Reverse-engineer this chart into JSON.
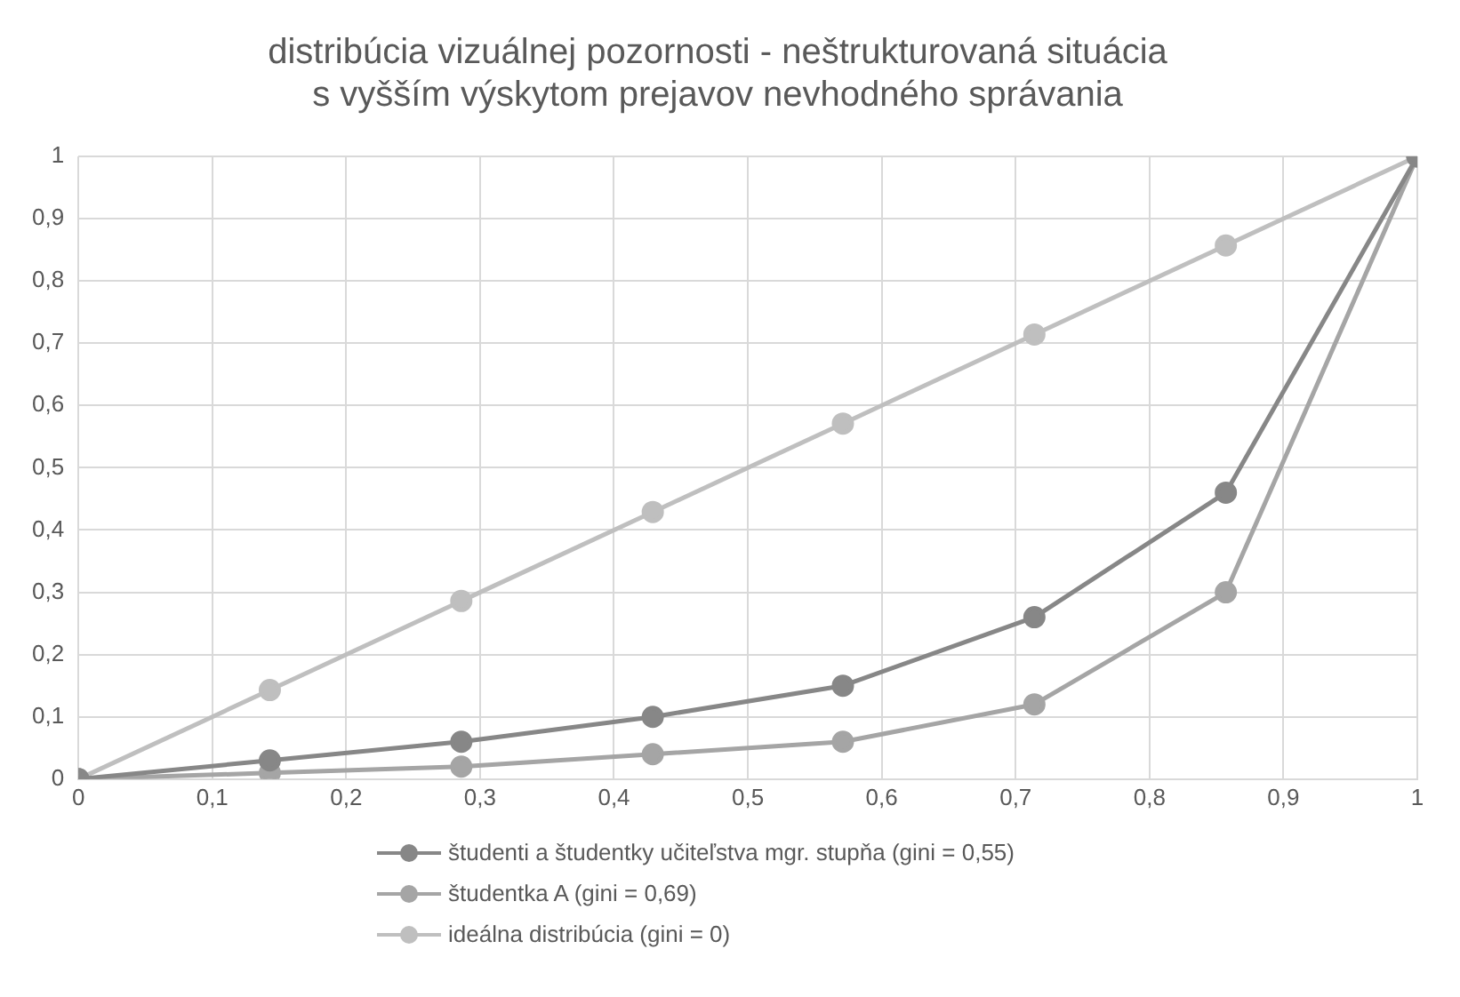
{
  "chart_data": {
    "type": "line",
    "title": "distribúcia vizuálnej pozornosti - neštrukturovaná situácia s vyšším výskytom prejavov nevhodného správania",
    "x": [
      0,
      0.143,
      0.286,
      0.429,
      0.571,
      0.714,
      0.857,
      1
    ],
    "series": [
      {
        "name": "študenti a študentky učiteľstva mgr. stupňa (gini = 0,55)",
        "color": "#878787",
        "values": [
          0,
          0.03,
          0.06,
          0.1,
          0.15,
          0.26,
          0.46,
          1
        ]
      },
      {
        "name": "študentka A (gini = 0,69)",
        "color": "#a5a5a5",
        "values": [
          0,
          0.01,
          0.02,
          0.04,
          0.06,
          0.12,
          0.3,
          1
        ]
      },
      {
        "name": "ideálna distribúcia (gini = 0)",
        "color": "#bfbfbf",
        "values": [
          0,
          0.143,
          0.286,
          0.429,
          0.571,
          0.714,
          0.857,
          1
        ]
      }
    ],
    "xlim": [
      0,
      1
    ],
    "ylim": [
      0,
      1
    ],
    "xticks": [
      0,
      {
        "value": 0.1,
        "label": "0,1"
      },
      {
        "value": 0.2,
        "label": "0,2"
      },
      {
        "value": 0.3,
        "label": "0,3"
      },
      {
        "value": 0.4,
        "label": "0,4"
      },
      {
        "value": 0.5,
        "label": "0,5"
      },
      {
        "value": 0.6,
        "label": "0,6"
      },
      {
        "value": 0.7,
        "label": "0,7"
      },
      {
        "value": 0.8,
        "label": "0,8"
      },
      {
        "value": 0.9,
        "label": "0,9"
      },
      1
    ],
    "yticks": [
      0,
      {
        "value": 0.1,
        "label": "0,1"
      },
      {
        "value": 0.2,
        "label": "0,2"
      },
      {
        "value": 0.3,
        "label": "0,3"
      },
      {
        "value": 0.4,
        "label": "0,4"
      },
      {
        "value": 0.5,
        "label": "0,5"
      },
      {
        "value": 0.6,
        "label": "0,6"
      },
      {
        "value": 0.7,
        "label": "0,7"
      },
      {
        "value": 0.8,
        "label": "0,8"
      },
      {
        "value": 0.9,
        "label": "0,9"
      },
      1
    ],
    "grid": true,
    "legend": "bottom",
    "marker": "circle",
    "line_style": "solid"
  }
}
